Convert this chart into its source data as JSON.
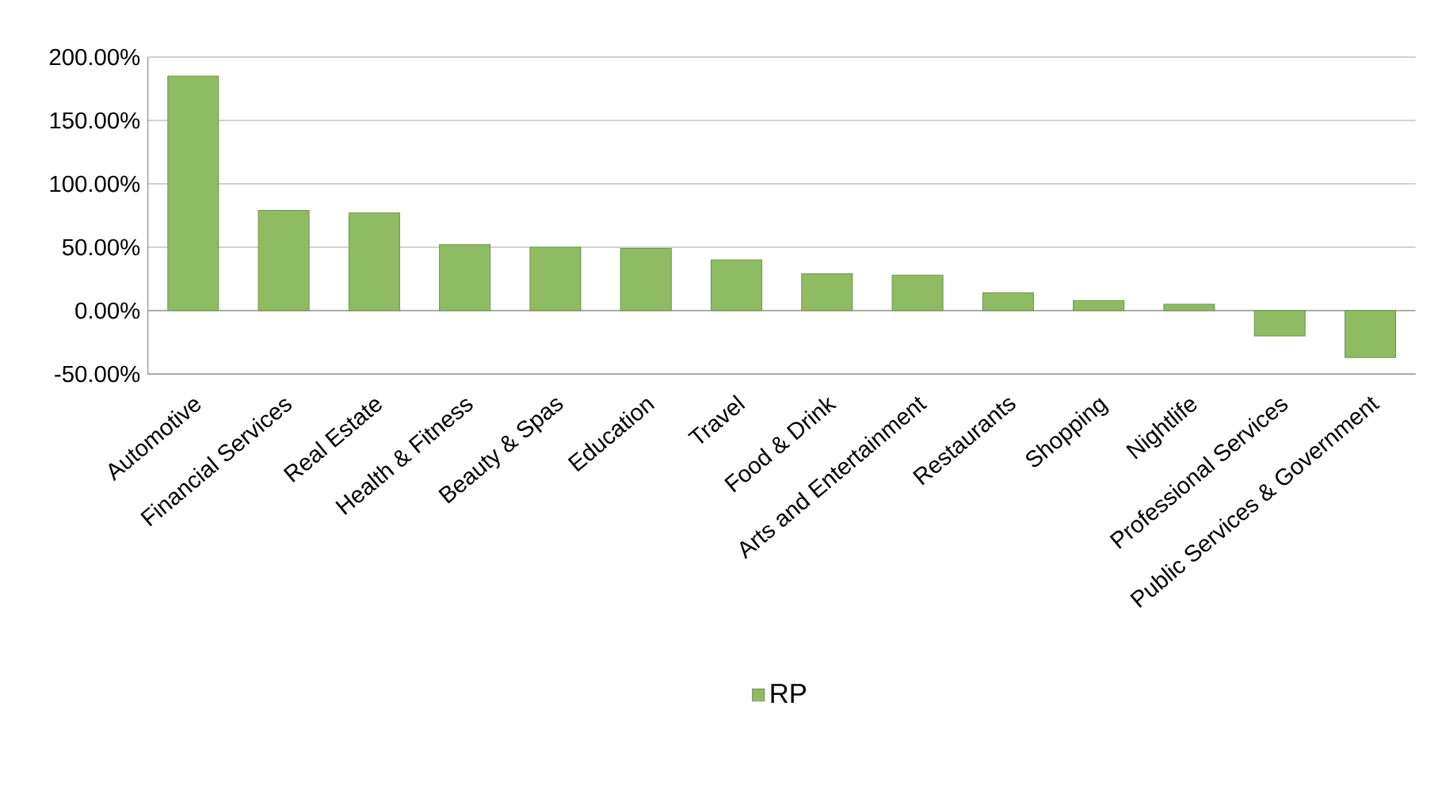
{
  "chart_data": {
    "type": "bar",
    "categories": [
      "Automotive",
      "Financial Services",
      "Real Estate",
      "Health & Fitness",
      "Beauty & Spas",
      "Education",
      "Travel",
      "Food & Drink",
      "Arts and Entertainment",
      "Restaurants",
      "Shopping",
      "Nightlife",
      "Professional Services",
      "Public Services & Government"
    ],
    "series": [
      {
        "name": "RP",
        "color": "#8fbb63",
        "values": [
          185,
          79,
          77,
          52,
          50,
          49,
          40,
          29,
          28,
          14,
          8,
          5,
          -20,
          -37
        ]
      }
    ],
    "ylim": [
      -50,
      200
    ],
    "yticks": [
      {
        "value": -50,
        "label": "-50.00%"
      },
      {
        "value": 0,
        "label": "0.00%"
      },
      {
        "value": 50,
        "label": "50.00%"
      },
      {
        "value": 100,
        "label": "100.00%"
      },
      {
        "value": 150,
        "label": "150.00%"
      },
      {
        "value": 200,
        "label": "200.00%"
      }
    ],
    "grid": "y",
    "legend": "bottom"
  }
}
